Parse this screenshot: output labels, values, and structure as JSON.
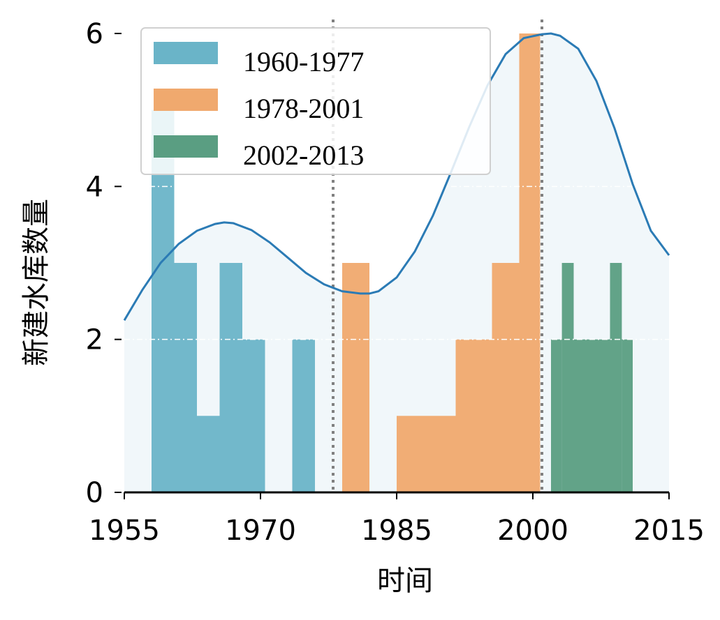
{
  "chart_data": {
    "type": "bar",
    "xlabel": "时间",
    "ylabel": "新建水库数量",
    "xlim": [
      1955,
      2015
    ],
    "ylim": [
      0,
      6
    ],
    "xticks": [
      "1955",
      "1970",
      "1985",
      "2000",
      "2015"
    ],
    "yticks": [
      "0",
      "2",
      "4",
      "6"
    ],
    "grid": "dash-dot horizontal lines at y=2 and y=4",
    "legend_position": "upper-left",
    "series": [
      {
        "name": "1960-1977",
        "color": "#6ab4c8",
        "bins": [
          {
            "x0": 1958.0,
            "x1": 1960.5,
            "value": 5
          },
          {
            "x0": 1960.5,
            "x1": 1963.0,
            "value": 3
          },
          {
            "x0": 1963.0,
            "x1": 1965.5,
            "value": 1
          },
          {
            "x0": 1965.5,
            "x1": 1968.0,
            "value": 3
          },
          {
            "x0": 1968.0,
            "x1": 1970.5,
            "value": 2
          },
          {
            "x0": 1973.5,
            "x1": 1976.0,
            "value": 2
          }
        ]
      },
      {
        "name": "1978-2001",
        "color": "#f0a96e",
        "bins": [
          {
            "x0": 1979.0,
            "x1": 1982.0,
            "value": 3
          },
          {
            "x0": 1985.0,
            "x1": 1991.5,
            "value": 1
          },
          {
            "x0": 1991.5,
            "x1": 1995.5,
            "value": 2
          },
          {
            "x0": 1995.5,
            "x1": 1998.5,
            "value": 3
          },
          {
            "x0": 1998.5,
            "x1": 2000.8,
            "value": 6
          }
        ]
      },
      {
        "name": "2002-2013",
        "color": "#5a9e82",
        "bins": [
          {
            "x0": 2002.0,
            "x1": 2003.2,
            "value": 2
          },
          {
            "x0": 2003.2,
            "x1": 2004.5,
            "value": 3
          },
          {
            "x0": 2004.5,
            "x1": 2008.5,
            "value": 2
          },
          {
            "x0": 2008.5,
            "x1": 2009.8,
            "value": 3
          },
          {
            "x0": 2009.8,
            "x1": 2011.0,
            "value": 2
          }
        ]
      }
    ],
    "density_curve": {
      "color": "#2b7bb5",
      "x": [
        1955,
        1957,
        1959,
        1961,
        1963,
        1965,
        1966,
        1967,
        1969,
        1971,
        1973,
        1975,
        1977,
        1979,
        1981,
        1982,
        1983,
        1985,
        1987,
        1989,
        1991,
        1993,
        1995,
        1997,
        1999,
        2001,
        2002,
        2003,
        2005,
        2007,
        2009,
        2011,
        2013,
        2015
      ],
      "y": [
        2.25,
        2.65,
        3.0,
        3.25,
        3.42,
        3.51,
        3.53,
        3.52,
        3.43,
        3.27,
        3.07,
        2.87,
        2.72,
        2.63,
        2.6,
        2.6,
        2.63,
        2.81,
        3.15,
        3.62,
        4.19,
        4.78,
        5.32,
        5.73,
        5.94,
        5.99,
        6.0,
        5.97,
        5.8,
        5.38,
        4.76,
        4.03,
        3.42,
        3.1
      ]
    },
    "period_dividers": [
      1978,
      2001
    ]
  }
}
